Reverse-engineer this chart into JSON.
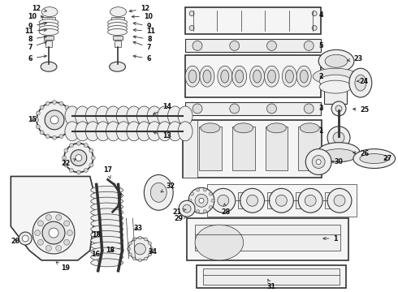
{
  "background_color": "#ffffff",
  "fig_width": 4.9,
  "fig_height": 3.6,
  "dpi": 100,
  "line_color": "#333333",
  "text_color": "#111111",
  "font_size": 5.5,
  "arrow_color": "#333333",
  "img_extent": [
    0,
    490,
    0,
    360
  ]
}
